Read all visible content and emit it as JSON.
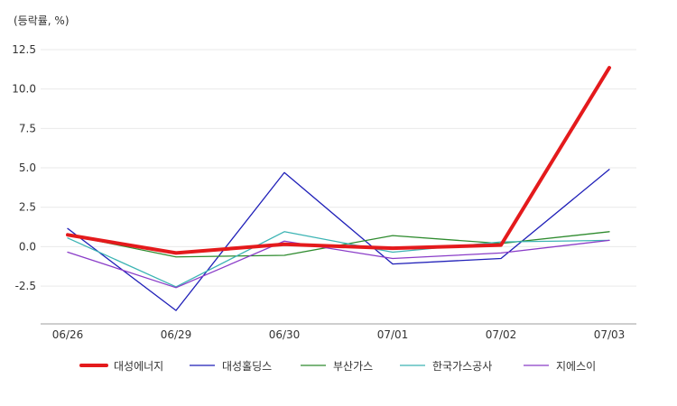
{
  "chart_data": {
    "type": "line",
    "unit_label": "(등락률, %)",
    "categories": [
      "06/26",
      "06/29",
      "06/30",
      "07/01",
      "07/02",
      "07/03"
    ],
    "y_ticks": [
      -2.5,
      0.0,
      2.5,
      5.0,
      7.5,
      10.0,
      12.5
    ],
    "ylim": [
      -4.9,
      12.5
    ],
    "grid": true,
    "legend_position": "bottom",
    "series": [
      {
        "name": "대성에너지",
        "color": "#e41a1c",
        "values": [
          0.75,
          -0.4,
          0.15,
          -0.1,
          0.1,
          11.35
        ]
      },
      {
        "name": "대성홀딩스",
        "color": "#1f1fb8",
        "values": [
          1.15,
          -4.05,
          4.7,
          -1.1,
          -0.75,
          4.9
        ]
      },
      {
        "name": "부산가스",
        "color": "#2e8b2e",
        "values": [
          0.75,
          -0.65,
          -0.55,
          0.7,
          0.2,
          0.95
        ]
      },
      {
        "name": "한국가스공사",
        "color": "#3cb4b4",
        "values": [
          0.55,
          -2.55,
          0.95,
          -0.35,
          0.3,
          0.4
        ]
      },
      {
        "name": "지에스이",
        "color": "#8a3cc8",
        "values": [
          -0.35,
          -2.6,
          0.35,
          -0.75,
          -0.4,
          0.4
        ]
      }
    ]
  }
}
